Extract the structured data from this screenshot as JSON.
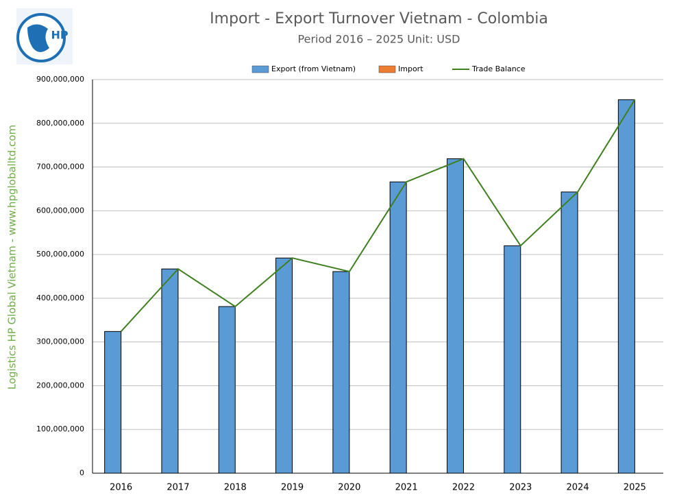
{
  "chart_data": {
    "type": "bar",
    "title": "Import - Export Turnover Vietnam - Colombia",
    "subtitle": "Period 2016 – 2025  Unit: USD",
    "side_text": "Logistics HP Global Vietnam - www.hpgloballtd.com",
    "logo_text": "HP",
    "categories": [
      "2016",
      "2017",
      "2018",
      "2019",
      "2020",
      "2021",
      "2022",
      "2023",
      "2024",
      "2025"
    ],
    "series": [
      {
        "name": "Export (from Vietnam)",
        "type": "bar",
        "color": "#5b9bd5",
        "values": [
          324000000,
          467000000,
          381000000,
          492000000,
          461000000,
          666000000,
          719000000,
          520000000,
          643000000,
          854000000
        ]
      },
      {
        "name": "Import",
        "type": "bar",
        "color": "#ed7d31",
        "values": [
          0,
          0,
          0,
          0,
          0,
          0,
          0,
          0,
          0,
          0
        ]
      },
      {
        "name": "Trade Balance",
        "type": "line",
        "color": "#3f7f1f",
        "values": [
          324000000,
          467000000,
          381000000,
          492000000,
          461000000,
          666000000,
          719000000,
          520000000,
          643000000,
          854000000
        ]
      }
    ],
    "ylim": [
      0,
      900000000
    ],
    "yticks": [
      0,
      {
        "value": 100000000,
        "label": "100,000,000"
      },
      {
        "value": 200000000,
        "label": "200,000,000"
      },
      {
        "value": 300000000,
        "label": "300,000,000"
      },
      {
        "value": 400000000,
        "label": "400,000,000"
      },
      {
        "value": 500000000,
        "label": "500,000,000"
      },
      {
        "value": 600000000,
        "label": "600,000,000"
      },
      {
        "value": 700000000,
        "label": "700,000,000"
      },
      {
        "value": 800000000,
        "label": "800,000,000"
      },
      {
        "value": 900000000,
        "label": "900,000,000"
      }
    ],
    "grid": true
  }
}
